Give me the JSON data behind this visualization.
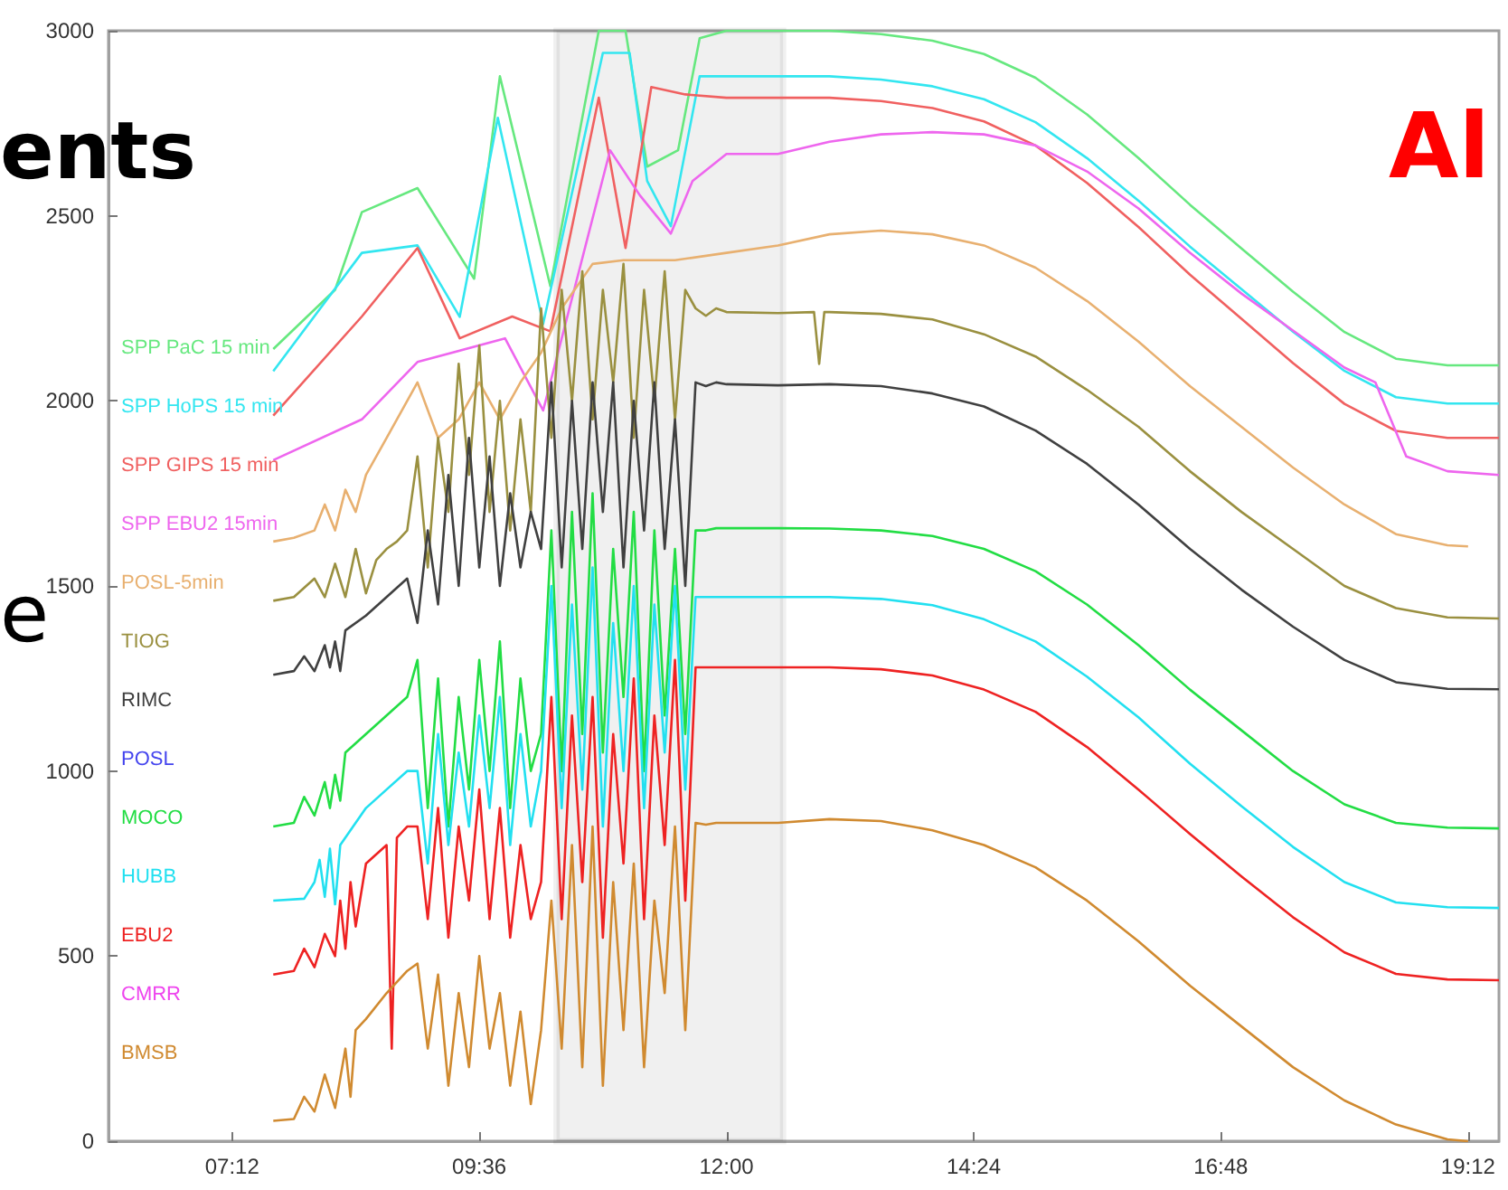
{
  "chart_data": {
    "type": "line",
    "marker": "none",
    "grid": false,
    "legend": "left",
    "xlim": [
      6,
      19.5
    ],
    "ylim": [
      0,
      3000
    ],
    "xticks": [
      {
        "value": 7.2,
        "label": "07:12"
      },
      {
        "value": 9.6,
        "label": "09:36"
      },
      {
        "value": 12,
        "label": "12:00"
      },
      {
        "value": 14.4,
        "label": "14:24"
      },
      {
        "value": 16.8,
        "label": "16:48"
      },
      {
        "value": 19.2,
        "label": "19:12"
      }
    ],
    "yticks": [
      0,
      500,
      1000,
      1500,
      2000,
      2500,
      3000
    ],
    "bands": [
      {
        "axis": "x",
        "from": 10.35,
        "to": 12.55,
        "color": "#000000"
      }
    ],
    "annotations": [
      "ents",
      "e",
      "Al"
    ],
    "series": [
      {
        "name": "SPP PaC 15 min",
        "color": "#66e87f",
        "x": [
          7.6,
          8.2,
          8.46,
          9.0,
          9.55,
          9.8,
          10.29,
          10.76,
          11.02,
          11.23,
          11.53,
          11.74,
          12.0,
          12.5,
          13,
          13.5,
          14,
          14.5,
          15,
          15.5,
          16,
          16.5,
          17,
          17.5,
          18,
          18.5,
          19,
          19.5
        ],
        "values": [
          2140,
          2300,
          2510,
          2575,
          2330,
          2877,
          2310,
          3000,
          3000,
          2633,
          2677,
          2980,
          3000,
          3000,
          3000,
          2991,
          2973,
          2937,
          2873,
          2774,
          2656,
          2530,
          2412,
          2295,
          2186,
          2114,
          2096,
          2096
        ]
      },
      {
        "name": "SPP HoPS 15 min",
        "color": "#33e6f0",
        "x": [
          7.6,
          8.46,
          9.0,
          9.41,
          9.78,
          10.22,
          10.8,
          11.06,
          11.23,
          11.46,
          11.74,
          12.0,
          12.5,
          13,
          13.5,
          14,
          14.5,
          15,
          15.5,
          16,
          16.5,
          17,
          17.5,
          18,
          18.5,
          19,
          19.5
        ],
        "values": [
          2080,
          2400,
          2420,
          2227,
          2765,
          2208,
          2940,
          2940,
          2594,
          2472,
          2877,
          2877,
          2877,
          2877,
          2868,
          2850,
          2815,
          2753,
          2656,
          2541,
          2417,
          2302,
          2187,
          2081,
          2010,
          1993,
          1993
        ]
      },
      {
        "name": "SPP GIPS 15 min",
        "color": "#f06060",
        "x": [
          7.6,
          8.46,
          9.0,
          9.41,
          9.92,
          10.29,
          10.76,
          11.02,
          11.27,
          11.6,
          12.0,
          12.5,
          13,
          13.5,
          14,
          14.5,
          15,
          15.5,
          16,
          16.5,
          17,
          17.5,
          18,
          18.5,
          19,
          19.5
        ],
        "values": [
          1960,
          2228,
          2413,
          2169,
          2228,
          2188,
          2819,
          2413,
          2848,
          2828,
          2819,
          2819,
          2819,
          2810,
          2791,
          2755,
          2690,
          2589,
          2470,
          2341,
          2222,
          2102,
          1992,
          1919,
          1900,
          1900
        ]
      },
      {
        "name": "SPP EBU2 15min",
        "color": "#ee66ee",
        "x": [
          7.6,
          8.46,
          9.0,
          9.85,
          10.22,
          10.87,
          11.16,
          11.46,
          11.67,
          12.0,
          12.5,
          13,
          13.5,
          14,
          14.5,
          15,
          15.5,
          16,
          16.5,
          17,
          17.5,
          18,
          18.3,
          18.6,
          19,
          19.5
        ],
        "values": [
          1840,
          1950,
          2105,
          2169,
          1974,
          2677,
          2555,
          2452,
          2594,
          2667,
          2667,
          2700,
          2720,
          2726,
          2720,
          2690,
          2620,
          2520,
          2400,
          2290,
          2190,
          2090,
          2050,
          1850,
          1810,
          1800
        ]
      },
      {
        "name": "POSL-5min",
        "color": "#e8b070",
        "x": [
          7.6,
          7.8,
          8.0,
          8.1,
          8.2,
          8.3,
          8.4,
          8.5,
          8.7,
          8.9,
          9.0,
          9.2,
          9.4,
          9.6,
          9.8,
          10.0,
          10.2,
          10.4,
          10.7,
          11.0,
          11.5,
          12.0,
          12.5,
          13,
          13.5,
          14,
          14.5,
          15,
          15.5,
          16,
          16.5,
          17,
          17.5,
          18,
          18.5,
          19,
          19.2
        ],
        "values": [
          1620,
          1630,
          1650,
          1720,
          1650,
          1760,
          1700,
          1800,
          1900,
          2000,
          2050,
          1900,
          1950,
          2050,
          1950,
          2050,
          2130,
          2250,
          2370,
          2380,
          2380,
          2400,
          2420,
          2450,
          2460,
          2450,
          2420,
          2360,
          2270,
          2160,
          2040,
          1930,
          1820,
          1720,
          1640,
          1610,
          1607
        ]
      },
      {
        "name": "TIOG",
        "color": "#9a9040",
        "x": [
          7.6,
          7.8,
          8.0,
          8.1,
          8.2,
          8.3,
          8.4,
          8.5,
          8.6,
          8.7,
          8.8,
          8.9,
          9.0,
          9.1,
          9.2,
          9.3,
          9.4,
          9.5,
          9.6,
          9.7,
          9.8,
          9.9,
          10.0,
          10.1,
          10.2,
          10.3,
          10.4,
          10.5,
          10.6,
          10.7,
          10.8,
          10.9,
          11.0,
          11.1,
          11.2,
          11.3,
          11.4,
          11.5,
          11.6,
          11.7,
          11.8,
          11.9,
          12.0,
          12.5,
          12.85,
          12.9,
          12.95,
          13,
          13.5,
          14,
          14.5,
          15,
          15.5,
          16,
          16.5,
          17,
          17.5,
          18,
          18.5,
          19,
          19.5
        ],
        "values": [
          1460,
          1470,
          1520,
          1470,
          1560,
          1470,
          1600,
          1480,
          1570,
          1600,
          1620,
          1650,
          1850,
          1550,
          1900,
          1700,
          2100,
          1800,
          2150,
          1700,
          2000,
          1650,
          1950,
          1700,
          2250,
          1900,
          2300,
          2000,
          2350,
          1950,
          2300,
          2050,
          2370,
          1900,
          2300,
          2000,
          2350,
          1950,
          2300,
          2250,
          2230,
          2250,
          2240,
          2237,
          2240,
          2100,
          2240,
          2240,
          2235,
          2220,
          2180,
          2120,
          2030,
          1930,
          1810,
          1700,
          1600,
          1500,
          1440,
          1415,
          1412
        ]
      },
      {
        "name": "RIMC",
        "color": "#404040",
        "x": [
          7.6,
          7.8,
          7.9,
          8.0,
          8.1,
          8.15,
          8.2,
          8.25,
          8.3,
          8.5,
          8.7,
          8.9,
          9.0,
          9.1,
          9.2,
          9.3,
          9.4,
          9.5,
          9.6,
          9.7,
          9.8,
          9.9,
          10.0,
          10.1,
          10.2,
          10.3,
          10.4,
          10.5,
          10.6,
          10.7,
          10.8,
          10.9,
          11.0,
          11.1,
          11.2,
          11.3,
          11.4,
          11.5,
          11.6,
          11.7,
          11.8,
          11.9,
          12.0,
          12.5,
          13,
          13.5,
          14,
          14.5,
          15,
          15.5,
          16,
          16.5,
          17,
          17.5,
          18,
          18.5,
          19,
          19.5
        ],
        "values": [
          1260,
          1270,
          1310,
          1270,
          1340,
          1280,
          1350,
          1270,
          1380,
          1420,
          1470,
          1520,
          1400,
          1650,
          1450,
          1800,
          1500,
          1900,
          1550,
          1850,
          1500,
          1750,
          1550,
          1700,
          1600,
          2050,
          1550,
          2000,
          1600,
          2050,
          1700,
          2050,
          1550,
          2000,
          1650,
          2050,
          1600,
          1950,
          1500,
          2050,
          2040,
          2050,
          2045,
          2042,
          2045,
          2040,
          2020,
          1985,
          1920,
          1830,
          1720,
          1600,
          1490,
          1390,
          1300,
          1240,
          1222,
          1221
        ]
      },
      {
        "name": "POSL",
        "color": "#4444ee"
      },
      {
        "name": "MOCO",
        "color": "#22dd44",
        "x": [
          7.6,
          7.8,
          7.9,
          8.0,
          8.1,
          8.15,
          8.2,
          8.25,
          8.3,
          8.5,
          8.7,
          8.9,
          9.0,
          9.1,
          9.2,
          9.3,
          9.4,
          9.5,
          9.6,
          9.7,
          9.8,
          9.9,
          10.0,
          10.1,
          10.2,
          10.3,
          10.4,
          10.5,
          10.6,
          10.7,
          10.8,
          10.9,
          11.0,
          11.1,
          11.2,
          11.3,
          11.4,
          11.5,
          11.6,
          11.7,
          11.8,
          11.9,
          12.0,
          12.5,
          13,
          13.5,
          14,
          14.5,
          15,
          15.5,
          16,
          16.5,
          17,
          17.5,
          18,
          18.5,
          19,
          19.5
        ],
        "values": [
          850,
          860,
          930,
          880,
          970,
          900,
          990,
          920,
          1050,
          1100,
          1150,
          1200,
          1300,
          900,
          1250,
          850,
          1200,
          950,
          1300,
          1000,
          1350,
          900,
          1250,
          1000,
          1100,
          1650,
          1000,
          1700,
          1100,
          1750,
          1050,
          1600,
          1200,
          1700,
          1000,
          1650,
          1150,
          1600,
          1100,
          1650,
          1650,
          1656,
          1656,
          1656,
          1655,
          1650,
          1635,
          1600,
          1540,
          1450,
          1340,
          1220,
          1110,
          1000,
          910,
          860,
          847,
          845
        ]
      },
      {
        "name": "HUBB",
        "color": "#22e0f0",
        "x": [
          7.6,
          7.9,
          8.0,
          8.05,
          8.1,
          8.15,
          8.2,
          8.25,
          8.5,
          8.7,
          8.9,
          9.0,
          9.1,
          9.2,
          9.3,
          9.4,
          9.5,
          9.6,
          9.7,
          9.8,
          9.9,
          10.0,
          10.1,
          10.2,
          10.3,
          10.4,
          10.5,
          10.6,
          10.7,
          10.8,
          10.9,
          11.0,
          11.1,
          11.2,
          11.3,
          11.4,
          11.5,
          11.6,
          11.7,
          11.8,
          11.9,
          12.0,
          12.5,
          13,
          13.5,
          14,
          14.5,
          15,
          15.5,
          16,
          16.5,
          17,
          17.5,
          18,
          18.5,
          19,
          19.5
        ],
        "values": [
          650,
          655,
          700,
          760,
          660,
          790,
          640,
          800,
          900,
          950,
          1000,
          1000,
          750,
          1100,
          800,
          1050,
          850,
          1150,
          900,
          1200,
          800,
          1100,
          850,
          1000,
          1500,
          900,
          1450,
          950,
          1550,
          850,
          1400,
          1000,
          1500,
          900,
          1450,
          1050,
          1500,
          950,
          1470,
          1470,
          1470,
          1470,
          1470,
          1470,
          1465,
          1448,
          1410,
          1350,
          1255,
          1145,
          1020,
          905,
          795,
          700,
          645,
          632,
          630
        ]
      },
      {
        "name": "EBU2",
        "color": "#ee2222",
        "x": [
          7.6,
          7.8,
          7.9,
          8.0,
          8.1,
          8.2,
          8.25,
          8.3,
          8.35,
          8.4,
          8.5,
          8.7,
          8.75,
          8.8,
          8.9,
          9.0,
          9.1,
          9.2,
          9.3,
          9.4,
          9.5,
          9.6,
          9.7,
          9.8,
          9.9,
          10.0,
          10.1,
          10.2,
          10.3,
          10.4,
          10.5,
          10.6,
          10.7,
          10.8,
          10.9,
          11.0,
          11.1,
          11.2,
          11.3,
          11.4,
          11.5,
          11.6,
          11.7,
          11.8,
          11.9,
          12.0,
          12.5,
          13,
          13.5,
          14,
          14.5,
          15,
          15.5,
          16,
          16.5,
          17,
          17.5,
          18,
          18.5,
          19,
          19.5
        ],
        "values": [
          450,
          460,
          520,
          470,
          560,
          500,
          650,
          520,
          700,
          580,
          750,
          800,
          250,
          820,
          850,
          850,
          600,
          900,
          550,
          850,
          650,
          950,
          600,
          900,
          550,
          800,
          600,
          700,
          1200,
          600,
          1150,
          700,
          1200,
          550,
          1100,
          750,
          1250,
          600,
          1150,
          800,
          1300,
          650,
          1280,
          1280,
          1280,
          1280,
          1280,
          1280,
          1275,
          1258,
          1220,
          1160,
          1065,
          950,
          830,
          715,
          605,
          510,
          452,
          437,
          435
        ]
      },
      {
        "name": "CMRR",
        "color": "#ee44ee"
      },
      {
        "name": "BMSB",
        "color": "#d08a30",
        "x": [
          7.6,
          7.8,
          7.9,
          8.0,
          8.1,
          8.2,
          8.3,
          8.35,
          8.4,
          8.5,
          8.7,
          8.9,
          9.0,
          9.1,
          9.2,
          9.3,
          9.4,
          9.5,
          9.6,
          9.7,
          9.8,
          9.9,
          10.0,
          10.1,
          10.2,
          10.3,
          10.4,
          10.5,
          10.6,
          10.7,
          10.8,
          10.9,
          11.0,
          11.1,
          11.2,
          11.3,
          11.4,
          11.5,
          11.6,
          11.7,
          11.8,
          11.9,
          12.0,
          12.5,
          13,
          13.5,
          14,
          14.5,
          15,
          15.5,
          16,
          16.5,
          17,
          17.5,
          18,
          18.5,
          19,
          19.2
        ],
        "values": [
          55,
          60,
          120,
          80,
          180,
          90,
          250,
          120,
          300,
          330,
          400,
          460,
          480,
          250,
          450,
          150,
          400,
          200,
          500,
          250,
          400,
          150,
          350,
          100,
          300,
          650,
          250,
          800,
          200,
          850,
          150,
          700,
          300,
          750,
          200,
          650,
          400,
          850,
          300,
          860,
          855,
          860,
          860,
          860,
          870,
          865,
          840,
          800,
          740,
          650,
          540,
          420,
          310,
          200,
          110,
          45,
          5,
          0
        ]
      }
    ]
  }
}
